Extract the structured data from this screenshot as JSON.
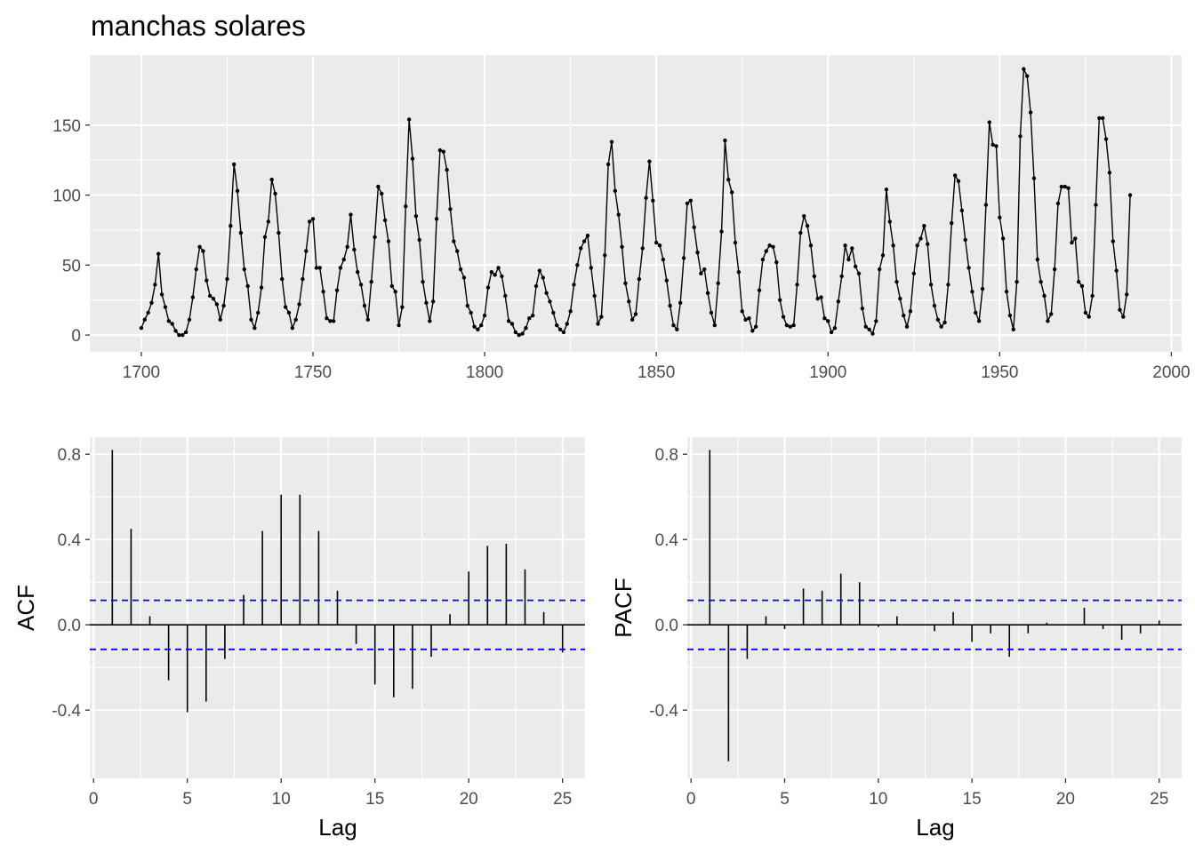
{
  "chart_data": [
    {
      "type": "line",
      "title": "manchas solares",
      "xlabel": "",
      "ylabel": "",
      "xlim": [
        1685,
        2003
      ],
      "ylim": [
        -12,
        200
      ],
      "xticks": [
        1700,
        1750,
        1800,
        1850,
        1900,
        1950,
        2000
      ],
      "yticks": [
        0,
        50,
        100,
        150
      ],
      "grid": true,
      "points": true,
      "x_start": 1700,
      "x_step": 1,
      "values": [
        5,
        11,
        16,
        23,
        36,
        58,
        29,
        20,
        10,
        8,
        3,
        0,
        0,
        2,
        11,
        27,
        47,
        63,
        60,
        39,
        28,
        26,
        22,
        11,
        21,
        40,
        78,
        122,
        103,
        73,
        47,
        35,
        11,
        5,
        16,
        34,
        70,
        81,
        111,
        101,
        73,
        40,
        20,
        16,
        5,
        11,
        22,
        40,
        60,
        81,
        83,
        48,
        48,
        31,
        12,
        10,
        10,
        32,
        48,
        54,
        63,
        86,
        61,
        45,
        36,
        21,
        11,
        38,
        70,
        106,
        101,
        82,
        67,
        35,
        31,
        7,
        20,
        92,
        154,
        126,
        85,
        68,
        38,
        23,
        10,
        24,
        83,
        132,
        131,
        118,
        90,
        67,
        60,
        47,
        41,
        21,
        16,
        6,
        4,
        7,
        14,
        34,
        45,
        43,
        48,
        42,
        28,
        10,
        8,
        2,
        0,
        1,
        5,
        12,
        14,
        35,
        46,
        41,
        30,
        24,
        16,
        7,
        4,
        2,
        8,
        17,
        36,
        50,
        62,
        67,
        71,
        48,
        28,
        8,
        13,
        57,
        122,
        138,
        103,
        86,
        63,
        37,
        24,
        11,
        15,
        40,
        62,
        98,
        124,
        96,
        66,
        64,
        54,
        39,
        21,
        7,
        4,
        23,
        55,
        94,
        96,
        77,
        59,
        44,
        47,
        30,
        16,
        7,
        37,
        74,
        139,
        111,
        102,
        66,
        45,
        17,
        11,
        12,
        3,
        6,
        32,
        54,
        60,
        64,
        63,
        52,
        25,
        13,
        7,
        6,
        7,
        36,
        73,
        85,
        78,
        64,
        42,
        26,
        27,
        12,
        10,
        2,
        5,
        24,
        42,
        64,
        54,
        62,
        49,
        44,
        19,
        6,
        4,
        1,
        10,
        47,
        57,
        104,
        81,
        64,
        38,
        26,
        14,
        6,
        17,
        44,
        64,
        69,
        78,
        65,
        36,
        21,
        11,
        6,
        9,
        36,
        80,
        114,
        110,
        89,
        68,
        48,
        31,
        16,
        10,
        33,
        93,
        152,
        136,
        135,
        84,
        69,
        31,
        14,
        4,
        38,
        142,
        190,
        185,
        159,
        112,
        54,
        38,
        28,
        10,
        15,
        47,
        94,
        106,
        106,
        105,
        66,
        69,
        38,
        35,
        16,
        13,
        28,
        93,
        155,
        155,
        140,
        116,
        67,
        46,
        18,
        13,
        29,
        100
      ]
    },
    {
      "type": "bar",
      "title": "",
      "xlabel": "Lag",
      "ylabel": "ACF",
      "xlim": [
        -0.2,
        26.2
      ],
      "ylim": [
        -0.72,
        0.88
      ],
      "xticks": [
        0,
        5,
        10,
        15,
        20,
        25
      ],
      "yticks": [
        -0.4,
        0.0,
        0.4,
        0.8
      ],
      "ytick_labels": [
        "-0.4",
        "0.0",
        "0.4",
        "0.8"
      ],
      "confidence_band": 0.115,
      "confidence_color": "#0000ff",
      "lags": [
        1,
        2,
        3,
        4,
        5,
        6,
        7,
        8,
        9,
        10,
        11,
        12,
        13,
        14,
        15,
        16,
        17,
        18,
        19,
        20,
        21,
        22,
        23,
        24,
        25
      ],
      "values": [
        0.82,
        0.45,
        0.04,
        -0.26,
        -0.41,
        -0.36,
        -0.16,
        0.14,
        0.44,
        0.61,
        0.61,
        0.44,
        0.16,
        -0.09,
        -0.28,
        -0.34,
        -0.3,
        -0.15,
        0.05,
        0.25,
        0.37,
        0.38,
        0.26,
        0.06,
        -0.13
      ]
    },
    {
      "type": "bar",
      "title": "",
      "xlabel": "Lag",
      "ylabel": "PACF",
      "xlim": [
        -0.2,
        26.2
      ],
      "ylim": [
        -0.72,
        0.88
      ],
      "xticks": [
        0,
        5,
        10,
        15,
        20,
        25
      ],
      "yticks": [
        -0.4,
        0.0,
        0.4,
        0.8
      ],
      "ytick_labels": [
        "-0.4",
        "0.0",
        "0.4",
        "0.8"
      ],
      "confidence_band": 0.115,
      "confidence_color": "#0000ff",
      "lags": [
        1,
        2,
        3,
        4,
        5,
        6,
        7,
        8,
        9,
        10,
        11,
        12,
        13,
        14,
        15,
        16,
        17,
        18,
        19,
        20,
        21,
        22,
        23,
        24,
        25
      ],
      "values": [
        0.82,
        -0.64,
        -0.16,
        0.04,
        -0.02,
        0.17,
        0.16,
        0.24,
        0.2,
        -0.01,
        0.04,
        0.0,
        -0.03,
        0.06,
        -0.08,
        -0.04,
        -0.15,
        -0.04,
        0.01,
        0.0,
        0.08,
        -0.02,
        -0.07,
        -0.04,
        0.02
      ]
    }
  ]
}
